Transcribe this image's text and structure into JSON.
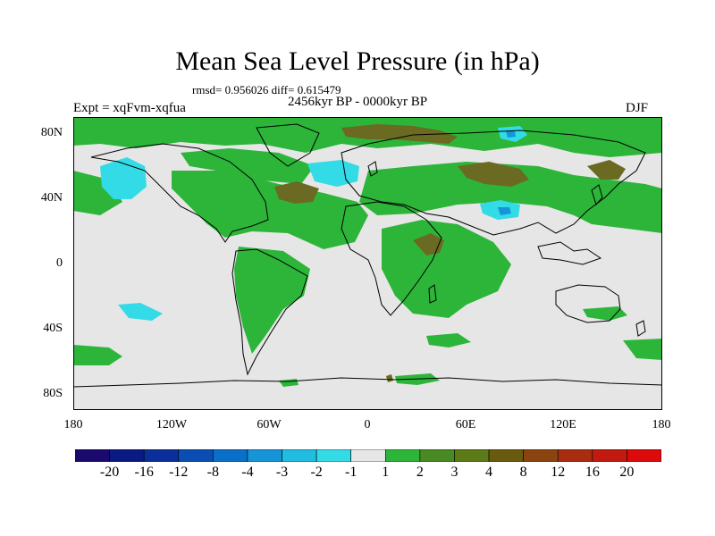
{
  "title": "Mean Sea Level Pressure (in hPa)",
  "stats": "rmsd= 0.956026  diff= 0.615479",
  "period": "2456kyr BP - 0000kyr BP",
  "experiment": "Expt = xqFvm-xqfua",
  "season": "DJF",
  "lat_labels": [
    "80N",
    "40N",
    "0",
    "40S",
    "80S"
  ],
  "lat_values": [
    80,
    40,
    0,
    -40,
    -80
  ],
  "lon_labels": [
    "180",
    "120W",
    "60W",
    "0",
    "60E",
    "120E",
    "180"
  ],
  "lon_values": [
    -180,
    -120,
    -60,
    0,
    60,
    120,
    180
  ],
  "colorbar": {
    "labels": [
      "-20",
      "-16",
      "-12",
      "-8",
      "-4",
      "-3",
      "-2",
      "-1",
      "1",
      "2",
      "3",
      "4",
      "8",
      "12",
      "16",
      "20"
    ],
    "colors": [
      "#1a0a6e",
      "#0a1a82",
      "#0b2f9a",
      "#0a4db3",
      "#0a6fc8",
      "#1594d8",
      "#20bde0",
      "#33dbe6",
      "#e6e6e6",
      "#2db53a",
      "#4a8a25",
      "#5d7a18",
      "#6a5a10",
      "#8a4410",
      "#a82d10",
      "#c21a10",
      "#dc0a0a"
    ]
  },
  "palette": {
    "neutral": "#e6e6e6",
    "green": "#2db53a",
    "brown": "#6b6a22",
    "cyan": "#33dbe6",
    "blue": "#1594d8"
  }
}
